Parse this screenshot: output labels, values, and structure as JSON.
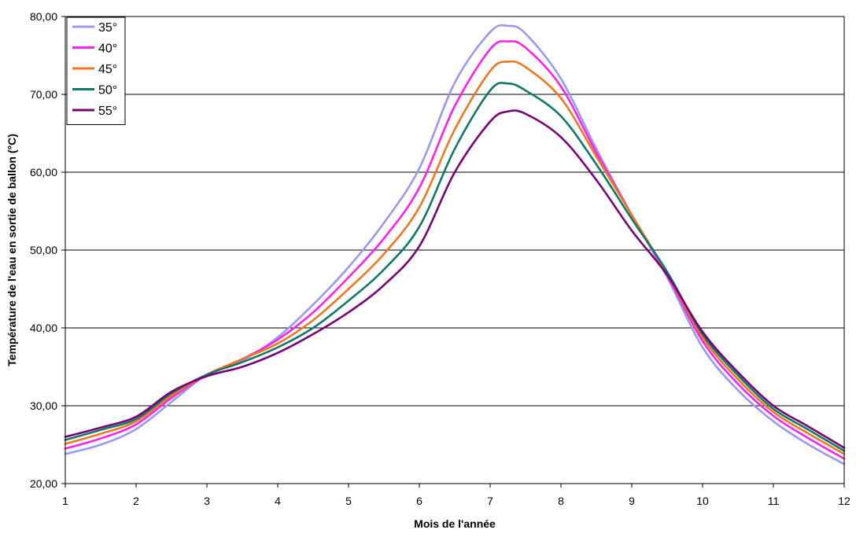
{
  "chart_data": {
    "type": "line",
    "title": "",
    "xlabel": "Mois de l'année",
    "ylabel": "Température de l'eau en sortie de ballon (°C)",
    "xlim": [
      1,
      12
    ],
    "ylim": [
      20,
      80
    ],
    "x_ticks": [
      1,
      2,
      3,
      4,
      5,
      6,
      7,
      8,
      9,
      10,
      11,
      12
    ],
    "y_ticks": [
      "20,00",
      "30,00",
      "40,00",
      "50,00",
      "60,00",
      "70,00",
      "80,00"
    ],
    "grid": "horizontal",
    "legend_position": "top-left",
    "x": [
      1,
      1.5,
      2,
      2.5,
      3,
      3.5,
      4,
      4.5,
      5,
      5.5,
      6,
      6.5,
      7,
      7.25,
      7.5,
      8,
      8.5,
      9,
      9.5,
      10,
      10.5,
      11,
      11.5,
      12
    ],
    "series": [
      {
        "name": "35°",
        "color": "#9999ee",
        "values": [
          23.8,
          25.0,
          27.0,
          30.5,
          34.0,
          35.8,
          38.8,
          43.0,
          47.8,
          53.5,
          60.5,
          71.5,
          78.0,
          78.8,
          77.8,
          72.0,
          63.0,
          54.5,
          46.5,
          37.5,
          32.0,
          28.0,
          25.0,
          22.5
        ]
      },
      {
        "name": "40°",
        "color": "#ff22ee",
        "values": [
          24.5,
          25.8,
          27.6,
          31.0,
          34.0,
          36.0,
          38.5,
          42.0,
          46.5,
          51.5,
          58.0,
          68.5,
          75.8,
          76.8,
          76.0,
          71.0,
          62.5,
          54.5,
          46.8,
          38.3,
          32.8,
          28.7,
          25.8,
          23.2
        ]
      },
      {
        "name": "45°",
        "color": "#ee7722",
        "values": [
          25.1,
          26.4,
          28.0,
          31.3,
          34.0,
          36.0,
          38.0,
          41.0,
          45.0,
          49.5,
          55.5,
          65.5,
          73.0,
          74.2,
          73.5,
          69.5,
          62.0,
          54.5,
          47.0,
          38.8,
          33.4,
          29.2,
          26.4,
          23.8
        ]
      },
      {
        "name": "50°",
        "color": "#117766",
        "values": [
          25.6,
          26.9,
          28.3,
          31.6,
          34.0,
          35.6,
          37.5,
          40.0,
          43.5,
          47.5,
          53.0,
          63.0,
          70.5,
          71.4,
          70.5,
          67.2,
          61.0,
          54.0,
          47.2,
          39.2,
          33.9,
          29.6,
          26.9,
          24.2
        ]
      },
      {
        "name": "55°",
        "color": "#770077",
        "values": [
          26.0,
          27.2,
          28.6,
          31.8,
          33.8,
          35.0,
          36.8,
          39.2,
          42.0,
          45.5,
          50.5,
          60.0,
          66.5,
          67.8,
          67.5,
          64.5,
          59.0,
          52.5,
          46.8,
          39.5,
          34.3,
          30.0,
          27.3,
          24.6
        ]
      }
    ]
  }
}
